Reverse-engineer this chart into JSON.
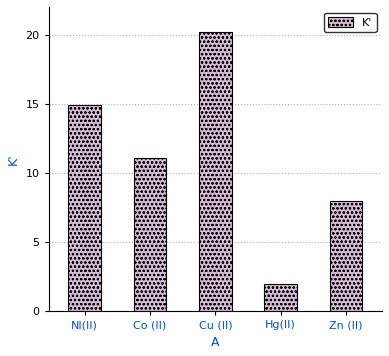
{
  "categories": [
    "NI(II)",
    "Co (II)",
    "Cu (II)",
    "Hg(II)",
    "Zn (II)"
  ],
  "values": [
    14.9,
    11.1,
    20.2,
    2.0,
    8.0
  ],
  "bar_facecolor": "#d4b8d4",
  "bar_edge_color": "#000000",
  "hatch_color": "#88cc88",
  "hatch": "oooo",
  "xlabel": "A",
  "ylabel": "K'",
  "legend_label": "K'",
  "ylim": [
    0,
    22
  ],
  "yticks": [
    0,
    5,
    10,
    15,
    20
  ],
  "grid_color": "#aaaadd",
  "grid_style": ":",
  "figsize": [
    3.89,
    3.56
  ],
  "dpi": 100,
  "bar_width": 0.5,
  "xlabel_color": "#0055cc",
  "ylabel_color": "#0055cc",
  "xtick_color": "#0055cc",
  "ytick_color": "#000000",
  "spine_color": "#000000"
}
